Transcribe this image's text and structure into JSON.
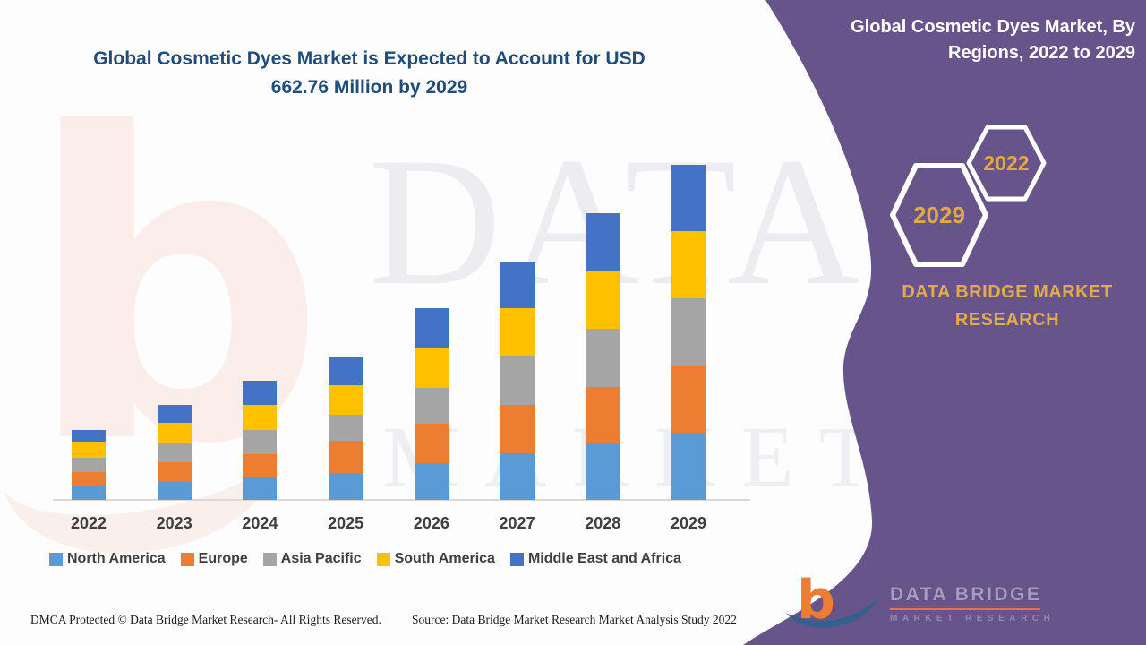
{
  "header": {
    "chart_title_line1": "Global Cosmetic Dyes Market is Expected to Account for USD",
    "chart_title_line2": "662.76 Million by 2029"
  },
  "panel": {
    "title_line1": "Global Cosmetic Dyes Market, By",
    "title_line2": "Regions, 2022 to 2029",
    "hexagon_top": "2022",
    "hexagon_bottom": "2029",
    "brand_line1": "DATA BRIDGE MARKET",
    "brand_line2": "RESEARCH",
    "panel_color": "#66548A",
    "hexagon_text_color": "#E2A845"
  },
  "watermark": {
    "text_line1": "DATA BRIDGE",
    "text_line2": "MARKET RESEARCH"
  },
  "logo": {
    "mark_letter": "b",
    "name": "DATA BRIDGE",
    "subtitle": "MARKET RESEARCH",
    "orange": "#ED7D31",
    "blue": "#33618D"
  },
  "footer": {
    "dmca": "DMCA Protected © Data Bridge Market Research- All Rights Reserved.",
    "source": "Source: Data Bridge Market Research Market Analysis Study 2022"
  },
  "chart_data": {
    "type": "bar",
    "stacked": true,
    "title": "Global Cosmetic Dyes Market, By Regions, 2022 to 2029",
    "unit": "USD Million",
    "grid": false,
    "legend_position": "bottom",
    "categories": [
      "2022",
      "2023",
      "2024",
      "2025",
      "2026",
      "2027",
      "2028",
      "2029"
    ],
    "series": [
      {
        "name": "North America",
        "color": "#5B9BD5",
        "values": [
          26.6,
          35.4,
          44.3,
          53.2,
          72.7,
          92.1,
          111.6,
          132.9
        ]
      },
      {
        "name": "Europe",
        "color": "#ED7D31",
        "values": [
          28.4,
          39.0,
          46.1,
          63.8,
          78.0,
          95.7,
          111.6,
          131.1
        ]
      },
      {
        "name": "Asia Pacific",
        "color": "#A5A5A5",
        "values": [
          28.4,
          37.2,
          47.8,
          51.4,
          70.9,
          97.5,
          115.2,
          134.76
        ]
      },
      {
        "name": "South America",
        "color": "#FFC000",
        "values": [
          31.9,
          40.8,
          49.6,
          58.5,
          79.7,
          93.9,
          115.2,
          132.9
        ]
      },
      {
        "name": "Middle East and Africa",
        "color": "#4472C4",
        "values": [
          23.0,
          35.4,
          47.8,
          56.7,
          78.0,
          92.1,
          113.4,
          131.1
        ]
      }
    ],
    "totals": [
      138.3,
      187.8,
      235.6,
      283.6,
      379.3,
      471.3,
      567.0,
      662.76
    ],
    "ylim": [
      0,
      700
    ]
  }
}
